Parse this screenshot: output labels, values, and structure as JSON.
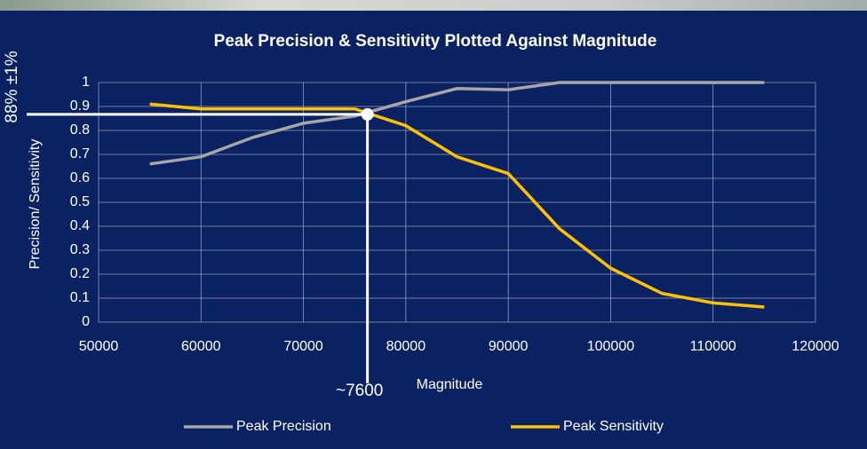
{
  "chart_data": {
    "type": "line",
    "title": "Peak Precision & Sensitivity Plotted Against Magnitude",
    "x_label": "Magnitude",
    "y_label": "Precision/ Sensitivity",
    "x": [
      55000,
      60000,
      65000,
      70000,
      75000,
      80000,
      85000,
      90000,
      95000,
      100000,
      105000,
      110000,
      115000
    ],
    "series": [
      {
        "name": "Peak Precision",
        "color": "#a6a6a6",
        "values": [
          0.66,
          0.69,
          0.77,
          0.83,
          0.86,
          0.92,
          0.975,
          0.97,
          1,
          1,
          1,
          1,
          1
        ]
      },
      {
        "name": "Peak Sensitivity",
        "color": "#ffc000",
        "values": [
          0.91,
          0.89,
          0.89,
          0.89,
          0.89,
          0.82,
          0.69,
          0.62,
          0.39,
          0.225,
          0.12,
          0.08,
          0.063
        ]
      }
    ],
    "xlim": [
      50000,
      120000
    ],
    "xticks": [
      50000,
      60000,
      70000,
      80000,
      90000,
      100000,
      110000,
      120000
    ],
    "ylim": [
      0,
      1
    ],
    "yticks": [
      0,
      0.1,
      0.2,
      0.3,
      0.4,
      0.5,
      0.6,
      0.7,
      0.8,
      0.9,
      1
    ],
    "grid": true,
    "marker": {
      "x": 76250,
      "y": 0.867,
      "color": "#ffffff"
    },
    "annotations": {
      "y_note": "88% ±1%",
      "x_note": "~7600"
    }
  }
}
